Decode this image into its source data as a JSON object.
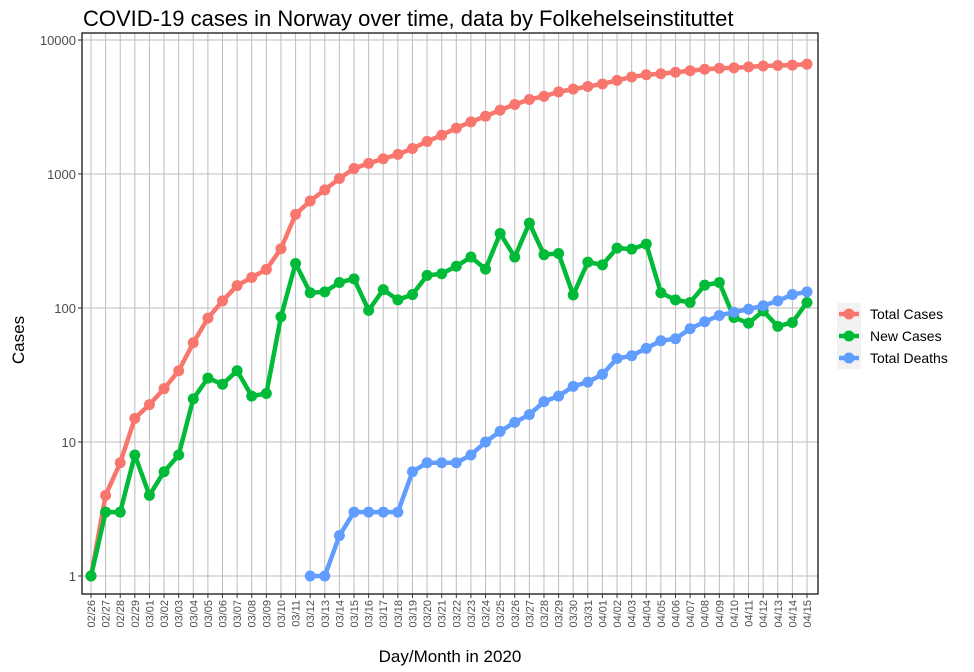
{
  "chart_data": {
    "type": "line",
    "title": "COVID-19 cases in Norway over time, data by Folkehelseinstituttet",
    "xlabel": "Day/Month in 2020",
    "ylabel": "Cases",
    "yscale": "log10",
    "ylim": [
      1,
      10000
    ],
    "yticks": [
      1,
      10,
      100,
      1000,
      10000
    ],
    "ytick_labels": [
      "1",
      "10",
      "100",
      "1000",
      "10000"
    ],
    "grid": true,
    "legend_position": "right",
    "categories": [
      "02/26",
      "02/27",
      "02/28",
      "02/29",
      "03/01",
      "03/02",
      "03/03",
      "03/04",
      "03/05",
      "03/06",
      "03/07",
      "03/08",
      "03/09",
      "03/10",
      "03/11",
      "03/12",
      "03/13",
      "03/14",
      "03/15",
      "03/16",
      "03/17",
      "03/18",
      "03/19",
      "03/20",
      "03/21",
      "03/22",
      "03/23",
      "03/24",
      "03/25",
      "03/26",
      "03/27",
      "03/28",
      "03/29",
      "03/30",
      "03/31",
      "04/01",
      "04/02",
      "04/03",
      "04/04",
      "04/05",
      "04/06",
      "04/07",
      "04/08",
      "04/09",
      "04/10",
      "04/11",
      "04/12",
      "04/13",
      "04/14",
      "04/15"
    ],
    "series": [
      {
        "name": "Total Cases",
        "color": "#F8766D",
        "values": [
          1,
          4,
          7,
          15,
          19,
          25,
          34,
          55,
          84,
          113,
          147,
          169,
          194,
          277,
          500,
          629,
          762,
          926,
          1100,
          1200,
          1300,
          1400,
          1550,
          1750,
          1950,
          2200,
          2450,
          2700,
          3000,
          3300,
          3600,
          3800,
          4100,
          4300,
          4500,
          4700,
          5000,
          5300,
          5500,
          5600,
          5750,
          5900,
          6050,
          6150,
          6200,
          6300,
          6400,
          6450,
          6500,
          6600
        ]
      },
      {
        "name": "New Cases",
        "color": "#00BA38",
        "values": [
          1,
          3,
          3,
          8,
          4,
          6,
          8,
          21,
          30,
          27,
          34,
          22,
          23,
          86,
          215,
          130,
          132,
          155,
          165,
          96,
          137,
          115,
          126,
          175,
          180,
          205,
          240,
          195,
          360,
          240,
          430,
          250,
          255,
          125,
          220,
          210,
          280,
          275,
          300,
          130,
          115,
          110,
          148,
          155,
          85,
          77,
          95,
          73,
          78,
          110
        ]
      },
      {
        "name": "Total Deaths",
        "color": "#619CFF",
        "values": [
          null,
          null,
          null,
          null,
          null,
          null,
          null,
          null,
          null,
          null,
          null,
          null,
          null,
          null,
          null,
          1,
          1,
          2,
          3,
          3,
          3,
          3,
          6,
          7,
          7,
          7,
          8,
          10,
          12,
          14,
          16,
          20,
          22,
          26,
          28,
          32,
          42,
          44,
          50,
          57,
          59,
          70,
          79,
          88,
          93,
          98,
          104,
          113,
          126,
          132
        ]
      }
    ]
  }
}
